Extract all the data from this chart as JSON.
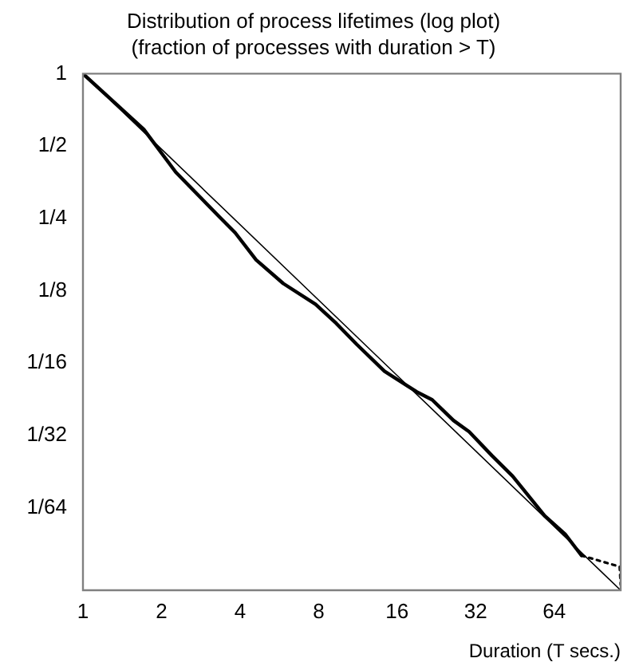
{
  "chart_data": {
    "type": "line",
    "title": "Distribution of process lifetimes (log plot)",
    "subtitle": "(fraction of processes with duration > T)",
    "xlabel": "Duration (T secs.)",
    "log": "xy",
    "grid": false,
    "legend": false,
    "marker": "none",
    "xlim": [
      1,
      115
    ],
    "ylim": [
      0.0071,
      1
    ],
    "xticks": [
      1,
      2,
      4,
      8,
      16,
      32,
      64
    ],
    "yticks": [
      1,
      {
        "value": 0.5,
        "label": "1/2"
      },
      {
        "value": 0.25,
        "label": "1/4"
      },
      {
        "value": 0.125,
        "label": "1/8"
      },
      {
        "value": 0.0625,
        "label": "1/16"
      },
      {
        "value": 0.03125,
        "label": "1/32"
      },
      {
        "value": 0.015625,
        "label": "1/64"
      }
    ],
    "series": [
      {
        "color": "#000000",
        "line_style": "solid",
        "x": [
          1,
          1.71,
          2.27,
          3.33,
          3.83,
          4.61,
          5.86,
          7.78,
          9.35,
          11.2,
          14.3,
          19.0,
          21.8,
          26.3,
          30.2,
          36.9,
          44.3,
          58.8,
          70.7,
          81.4
        ],
        "values": [
          1,
          0.587,
          0.389,
          0.254,
          0.218,
          0.168,
          0.134,
          0.11,
          0.0915,
          0.0748,
          0.0579,
          0.0475,
          0.044,
          0.0361,
          0.0324,
          0.0258,
          0.0212,
          0.0145,
          0.0121,
          0.0099
        ]
      },
      {
        "color": "#000000",
        "line_style": "dotted",
        "x": [
          81.4,
          114,
          115
        ],
        "values": [
          0.0099,
          0.0089,
          0.0075
        ]
      },
      {
        "color": "#000000",
        "line_style": "solid",
        "x": [
          1,
          115
        ],
        "values": [
          1,
          0.0071
        ]
      }
    ]
  }
}
